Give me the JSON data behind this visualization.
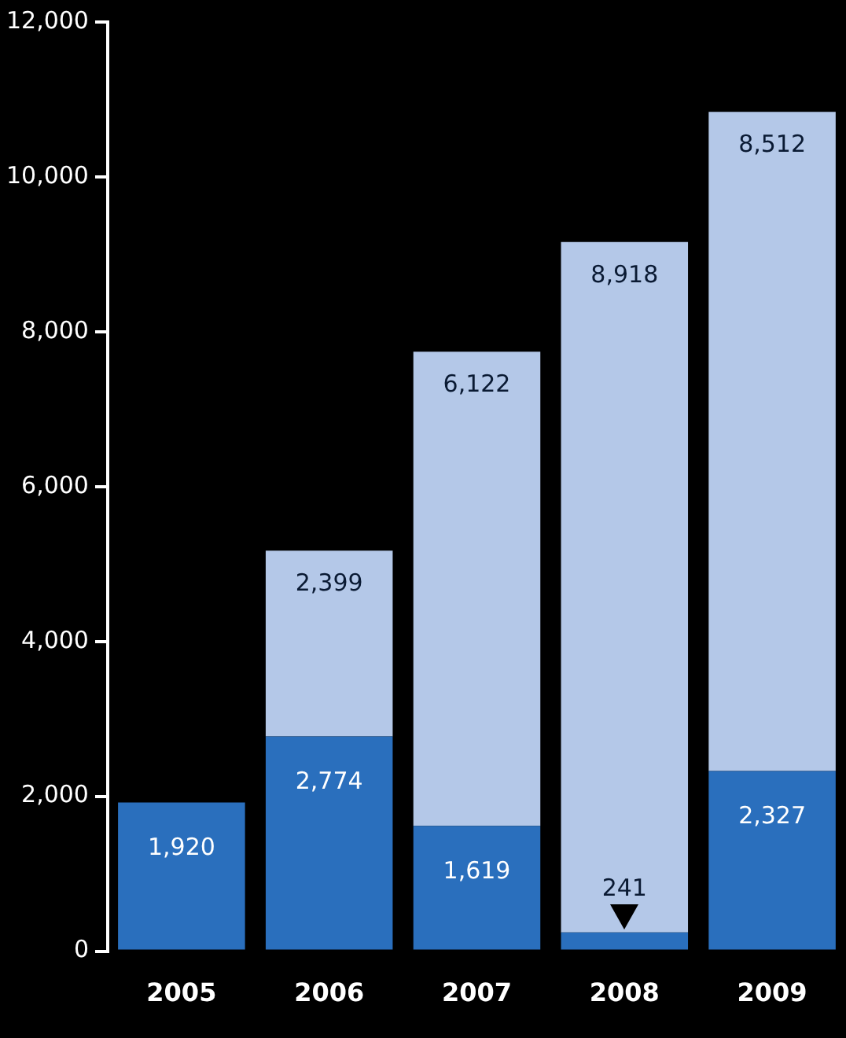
{
  "chart_data": {
    "type": "bar",
    "stacked": true,
    "categories": [
      "2005",
      "2006",
      "2007",
      "2008",
      "2009"
    ],
    "series": [
      {
        "color": "#2a6fbd",
        "values": [
          1920,
          2774,
          1619,
          241,
          2327
        ],
        "value_labels": [
          "1,920",
          "2,774",
          "1,619",
          "241",
          "2,327"
        ]
      },
      {
        "color": "#b4c8e8",
        "values": [
          null,
          2399,
          6122,
          8918,
          8512
        ],
        "value_labels": [
          null,
          "2,399",
          "6,122",
          "8,918",
          "8,512"
        ]
      }
    ],
    "ylim": [
      0,
      12000
    ],
    "yticks": [
      {
        "value": 0,
        "label": "0"
      },
      {
        "value": 2000,
        "label": "2,000"
      },
      {
        "value": 4000,
        "label": "4,000"
      },
      {
        "value": 6000,
        "label": "6,000"
      },
      {
        "value": 8000,
        "label": "8,000"
      },
      {
        "value": 10000,
        "label": "10,000"
      },
      {
        "value": 12000,
        "label": "12,000"
      }
    ],
    "grid": false,
    "legend": false
  }
}
